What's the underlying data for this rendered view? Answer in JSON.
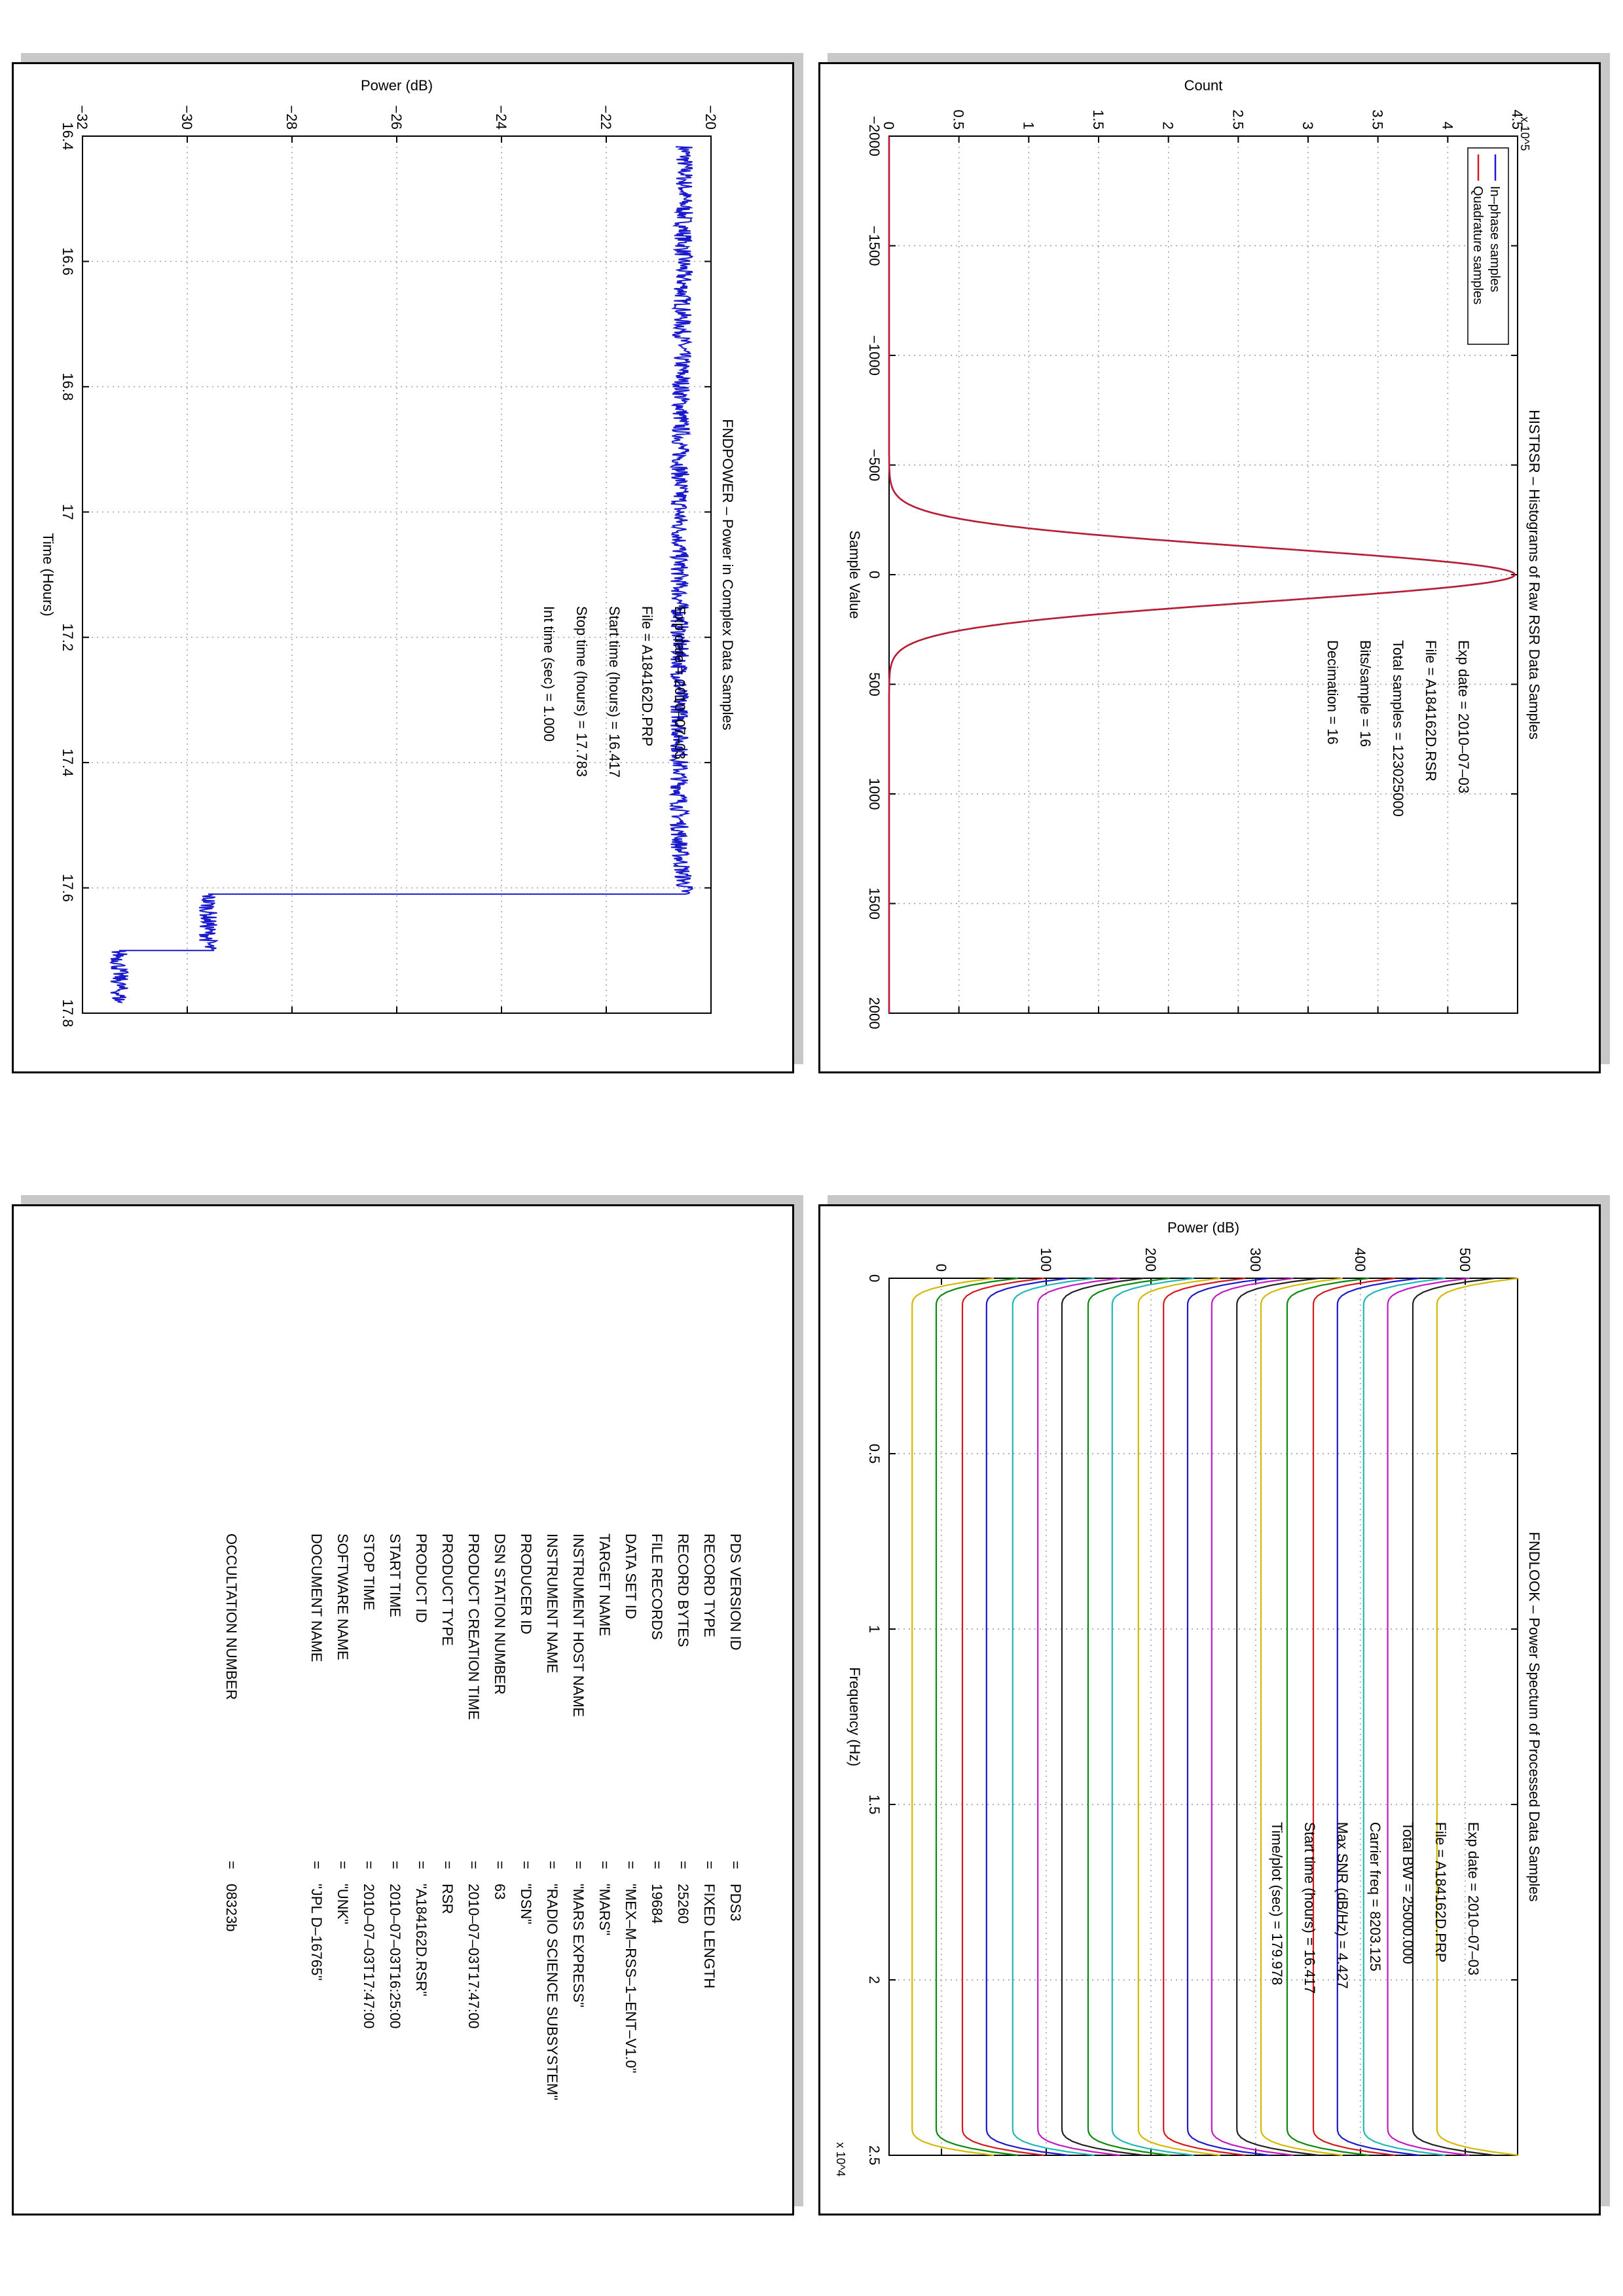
{
  "chart_data": [
    {
      "type": "line",
      "title": "HISTRSR – Histograms of Raw RSR Data Samples",
      "xlabel": "Sample Value",
      "ylabel": "Count",
      "y_multiplier": "x 10^5",
      "xlim": [
        -2000,
        2000
      ],
      "ylim": [
        0,
        4.5
      ],
      "grid": true,
      "x_ticks": [
        -2000,
        -1500,
        -1000,
        -500,
        0,
        500,
        1000,
        1500,
        2000
      ],
      "y_ticks": [
        0,
        0.5,
        1,
        1.5,
        2,
        2.5,
        3,
        3.5,
        4,
        4.5
      ],
      "legend": {
        "placement": "top-left",
        "entries": [
          "In–phase samples",
          "Quadrature samples"
        ]
      },
      "series": [
        {
          "name": "In–phase samples",
          "color": "#1a1acc",
          "peak_x": 0,
          "peak_y": 4.48,
          "sigma": 122
        },
        {
          "name": "Quadrature samples",
          "color": "#d11a1a",
          "peak_x": 0,
          "peak_y": 4.48,
          "sigma": 122
        }
      ],
      "annotations": [
        "Exp date = 2010–07–03",
        "File = A184162D.RSR",
        "Total samples =  123025000",
        "Bits/sample    =        16",
        "Decimation    =        16"
      ]
    },
    {
      "type": "line",
      "title": "FNDPOWER – Power in Complex Data Samples",
      "xlabel": "Time (Hours)",
      "ylabel": "Power (dB)",
      "xlim": [
        16.4,
        17.8
      ],
      "ylim": [
        -32,
        -20
      ],
      "grid": true,
      "x_ticks": [
        16.4,
        16.6,
        16.8,
        17,
        17.2,
        17.4,
        17.6,
        17.8
      ],
      "y_ticks": [
        -32,
        -30,
        -28,
        -26,
        -24,
        -22,
        -20
      ],
      "series": [
        {
          "name": "",
          "color": "#1a1acc",
          "x": [
            16.417,
            17.0,
            17.54,
            17.6,
            17.61,
            17.61,
            17.7,
            17.7,
            17.783
          ],
          "y": [
            -20.5,
            -20.6,
            -20.6,
            -20.5,
            -20.5,
            -29.6,
            -29.6,
            -31.3,
            -31.3
          ]
        }
      ],
      "annotations": [
        "Exp date = 2010–07–03",
        "File = A184162D.PRP",
        "Start time (hours) = 16.417",
        "Stop time (hours)  =  17.783",
        "Int time (sec)  =      1.000"
      ]
    },
    {
      "type": "line",
      "title": "FNDLOOK – Power Spectum of Processed Data Samples",
      "xlabel": "Frequency (Hz)",
      "ylabel": "Power (dB)",
      "x_multiplier": "x 10^4",
      "xlim": [
        0,
        2.5
      ],
      "ylim": [
        -50,
        550
      ],
      "grid": true,
      "x_ticks": [
        0,
        0.5,
        1,
        1.5,
        2,
        2.5
      ],
      "y_ticks": [
        0,
        100,
        200,
        300,
        400,
        500
      ],
      "series_colors": [
        "#d6b800",
        "#0a8a0a",
        "#d11a1a",
        "#1a1acc",
        "#1fb8b8",
        "#c21ac2",
        "#222222",
        "#0a8a0a",
        "#1fb8b8",
        "#d6b800",
        "#d11a1a",
        "#1a1acc",
        "#c21ac2",
        "#222222",
        "#d6b800",
        "#0a8a0a",
        "#d11a1a",
        "#1a1acc",
        "#1fb8b8",
        "#c21ac2",
        "#222222",
        "#d6b800"
      ],
      "series_levels": [
        -28,
        -5,
        20,
        43,
        68,
        92,
        115,
        140,
        163,
        188,
        212,
        235,
        258,
        282,
        305,
        330,
        355,
        378,
        403,
        426,
        450,
        473
      ],
      "annotations": [
        "Exp date = 2010–07–03",
        "File = A184162D.PRP",
        "Total BW =     25000.000",
        "Carrier freq =   8203.125",
        "Max SNR (dB/Hz) =     4.427",
        "Start time (hours) =  16.417",
        "Time/plot (sec) =   179.978"
      ]
    }
  ],
  "label": [
    {
      "key": "PDS VERSION ID",
      "value": "PDS3"
    },
    {
      "key": "RECORD TYPE",
      "value": "FIXED LENGTH"
    },
    {
      "key": "RECORD BYTES",
      "value": "25260"
    },
    {
      "key": "FILE RECORDS",
      "value": "19684"
    },
    {
      "key": "DATA SET ID",
      "value": "\"MEX–M–RSS–1–ENT–V1.0\""
    },
    {
      "key": "TARGET NAME",
      "value": "\"MARS\""
    },
    {
      "key": "INSTRUMENT HOST NAME",
      "value": "\"MARS EXPRESS\""
    },
    {
      "key": "INSTRUMENT NAME",
      "value": "\"RADIO SCIENCE SUBSYSTEM\""
    },
    {
      "key": "PRODUCER ID",
      "value": "\"DSN\""
    },
    {
      "key": "DSN STATION NUMBER",
      "value": "63"
    },
    {
      "key": "PRODUCT CREATION TIME",
      "value": "2010–07–03T17:47:00"
    },
    {
      "key": "PRODUCT TYPE",
      "value": "RSR"
    },
    {
      "key": "PRODUCT ID",
      "value": "\"A184162D.RSR\""
    },
    {
      "key": "START TIME",
      "value": "2010–07–03T16:25:00"
    },
    {
      "key": "STOP TIME",
      "value": "2010–07–03T17:47:00"
    },
    {
      "key": "SOFTWARE NAME",
      "value": "\"UNK\""
    },
    {
      "key": "DOCUMENT NAME",
      "value": "\"JPL D–16765\""
    },
    {
      "key": "",
      "value": ""
    },
    {
      "key": "OCCULTATION NUMBER",
      "value": "08323b"
    }
  ]
}
